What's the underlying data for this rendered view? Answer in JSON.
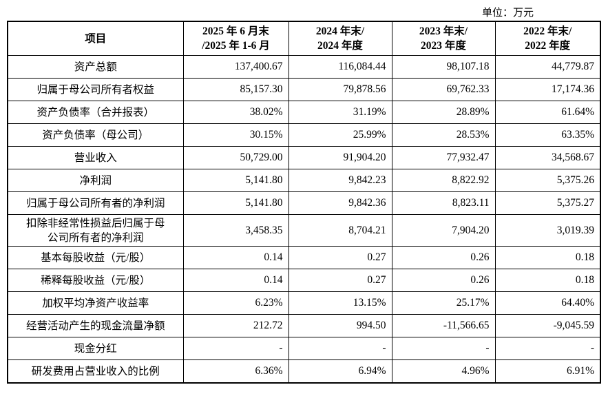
{
  "unit": "单位：万元",
  "table": {
    "header": [
      [
        "项目"
      ],
      [
        "2025 年 6 月末",
        "/2025 年 1-6 月"
      ],
      [
        "2024 年末/",
        "2024 年度"
      ],
      [
        "2023 年末/",
        "2023 年度"
      ],
      [
        "2022 年末/",
        "2022 年度"
      ]
    ],
    "rows": [
      [
        "资产总额",
        "137,400.67",
        "116,084.44",
        "98,107.18",
        "44,779.87"
      ],
      [
        "归属于母公司所有者权益",
        "85,157.30",
        "79,878.56",
        "69,762.33",
        "17,174.36"
      ],
      [
        "资产负债率（合并报表）",
        "38.02%",
        "31.19%",
        "28.89%",
        "61.64%"
      ],
      [
        "资产负债率（母公司）",
        "30.15%",
        "25.99%",
        "28.53%",
        "63.35%"
      ],
      [
        "营业收入",
        "50,729.00",
        "91,904.20",
        "77,932.47",
        "34,568.67"
      ],
      [
        "净利润",
        "5,141.80",
        "9,842.23",
        "8,822.92",
        "5,375.26"
      ],
      [
        "归属于母公司所有者的净利润",
        "5,141.80",
        "9,842.36",
        "8,823.11",
        "5,375.27"
      ],
      [
        "扣除非经常性损益后归属于母公司所有者的净利润",
        "3,458.35",
        "8,704.21",
        "7,904.20",
        "3,019.39"
      ],
      [
        "基本每股收益（元/股）",
        "0.14",
        "0.27",
        "0.26",
        "0.18"
      ],
      [
        "稀释每股收益（元/股）",
        "0.14",
        "0.27",
        "0.26",
        "0.18"
      ],
      [
        "加权平均净资产收益率",
        "6.23%",
        "13.15%",
        "25.17%",
        "64.40%"
      ],
      [
        "经营活动产生的现金流量净额",
        "212.72",
        "994.50",
        "-11,566.65",
        "-9,045.59"
      ],
      [
        "现金分红",
        "-",
        "-",
        "-",
        "-"
      ],
      [
        "研发费用占营业收入的比例",
        "6.36%",
        "6.94%",
        "4.96%",
        "6.91%"
      ]
    ]
  }
}
